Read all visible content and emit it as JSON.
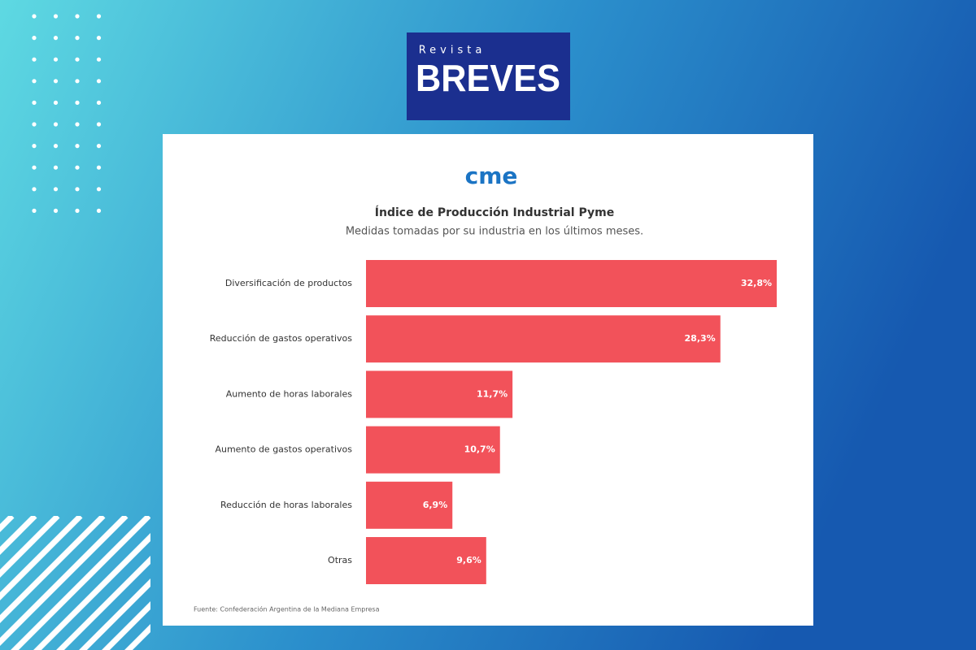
{
  "header": {
    "kicker": "Revista",
    "brand": "BREVES"
  },
  "logo": "cme",
  "chart_data": {
    "type": "hbar",
    "title": "Índice de Producción Industrial Pyme",
    "subtitle": "Medidas tomadas por su industria en los últimos meses.",
    "categories": [
      "Diversificación de productos",
      "Reducción de gastos operativos",
      "Aumento de horas laborales",
      "Aumento de gastos operativos",
      "Reducción de horas laborales",
      "Otras"
    ],
    "values": [
      32.8,
      28.3,
      11.7,
      10.7,
      6.9,
      9.6
    ],
    "value_labels": [
      "32,8%",
      "28,3%",
      "11,7%",
      "10,7%",
      "6,9%",
      "9,6%"
    ],
    "color": "#f2525a",
    "source": "Fuente: Confederación Argentina de la Mediana Empresa"
  }
}
